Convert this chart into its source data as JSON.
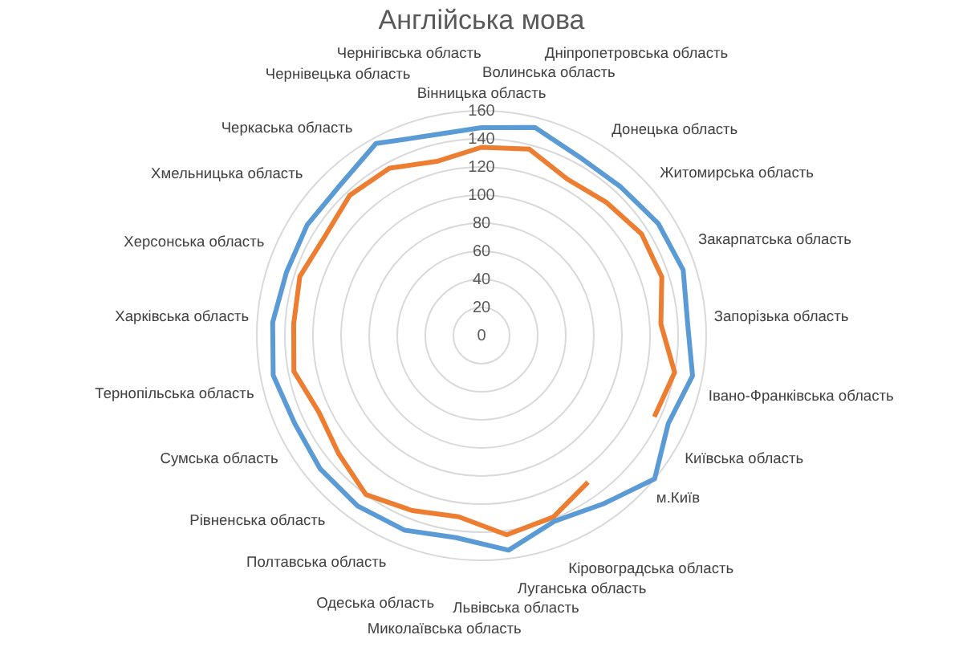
{
  "chart_data": {
    "type": "radar",
    "title": "Англійська мова",
    "categories": [
      "Вінницька область",
      "Волинська область",
      "Дніпропетровська область",
      "Донецька область",
      "Житомирська область",
      "Закарпатська область",
      "Запорізька область",
      "Івано-Франківська область",
      "Київська область",
      "м.Київ",
      "Кіровоградська область",
      "Луганська область",
      "Львівська область",
      "Миколаївська область",
      "Одеська область",
      "Полтавська область",
      "Рівненська область",
      "Сумська область",
      "Тернопільська область",
      "Харківська область",
      "Херсонська область",
      "Хмельницька область",
      "Черкаська область",
      "Чернівецька область",
      "Чернігівська область"
    ],
    "series": [
      {
        "color": "#5b9bd5",
        "values": [
          148,
          153,
          145,
          145,
          149,
          151,
          147,
          153,
          147,
          160,
          148,
          142,
          154,
          145,
          149,
          150,
          149,
          147,
          151,
          149,
          146,
          147,
          147,
          156,
          147
        ]
      },
      {
        "color": "#ed7d31",
        "values": [
          134,
          137,
          127,
          130,
          135,
          135,
          128,
          140,
          136,
          null,
          129,
          139,
          143,
          130,
          134,
          140,
          132,
          128,
          136,
          134,
          136,
          132,
          137,
          136,
          128
        ]
      }
    ],
    "ylim": [
      0,
      160
    ],
    "yticks": [
      0,
      20,
      40,
      60,
      80,
      100,
      120,
      140,
      160
    ],
    "grid": true,
    "legend": false,
    "marker": "none",
    "line_style": "solid"
  }
}
